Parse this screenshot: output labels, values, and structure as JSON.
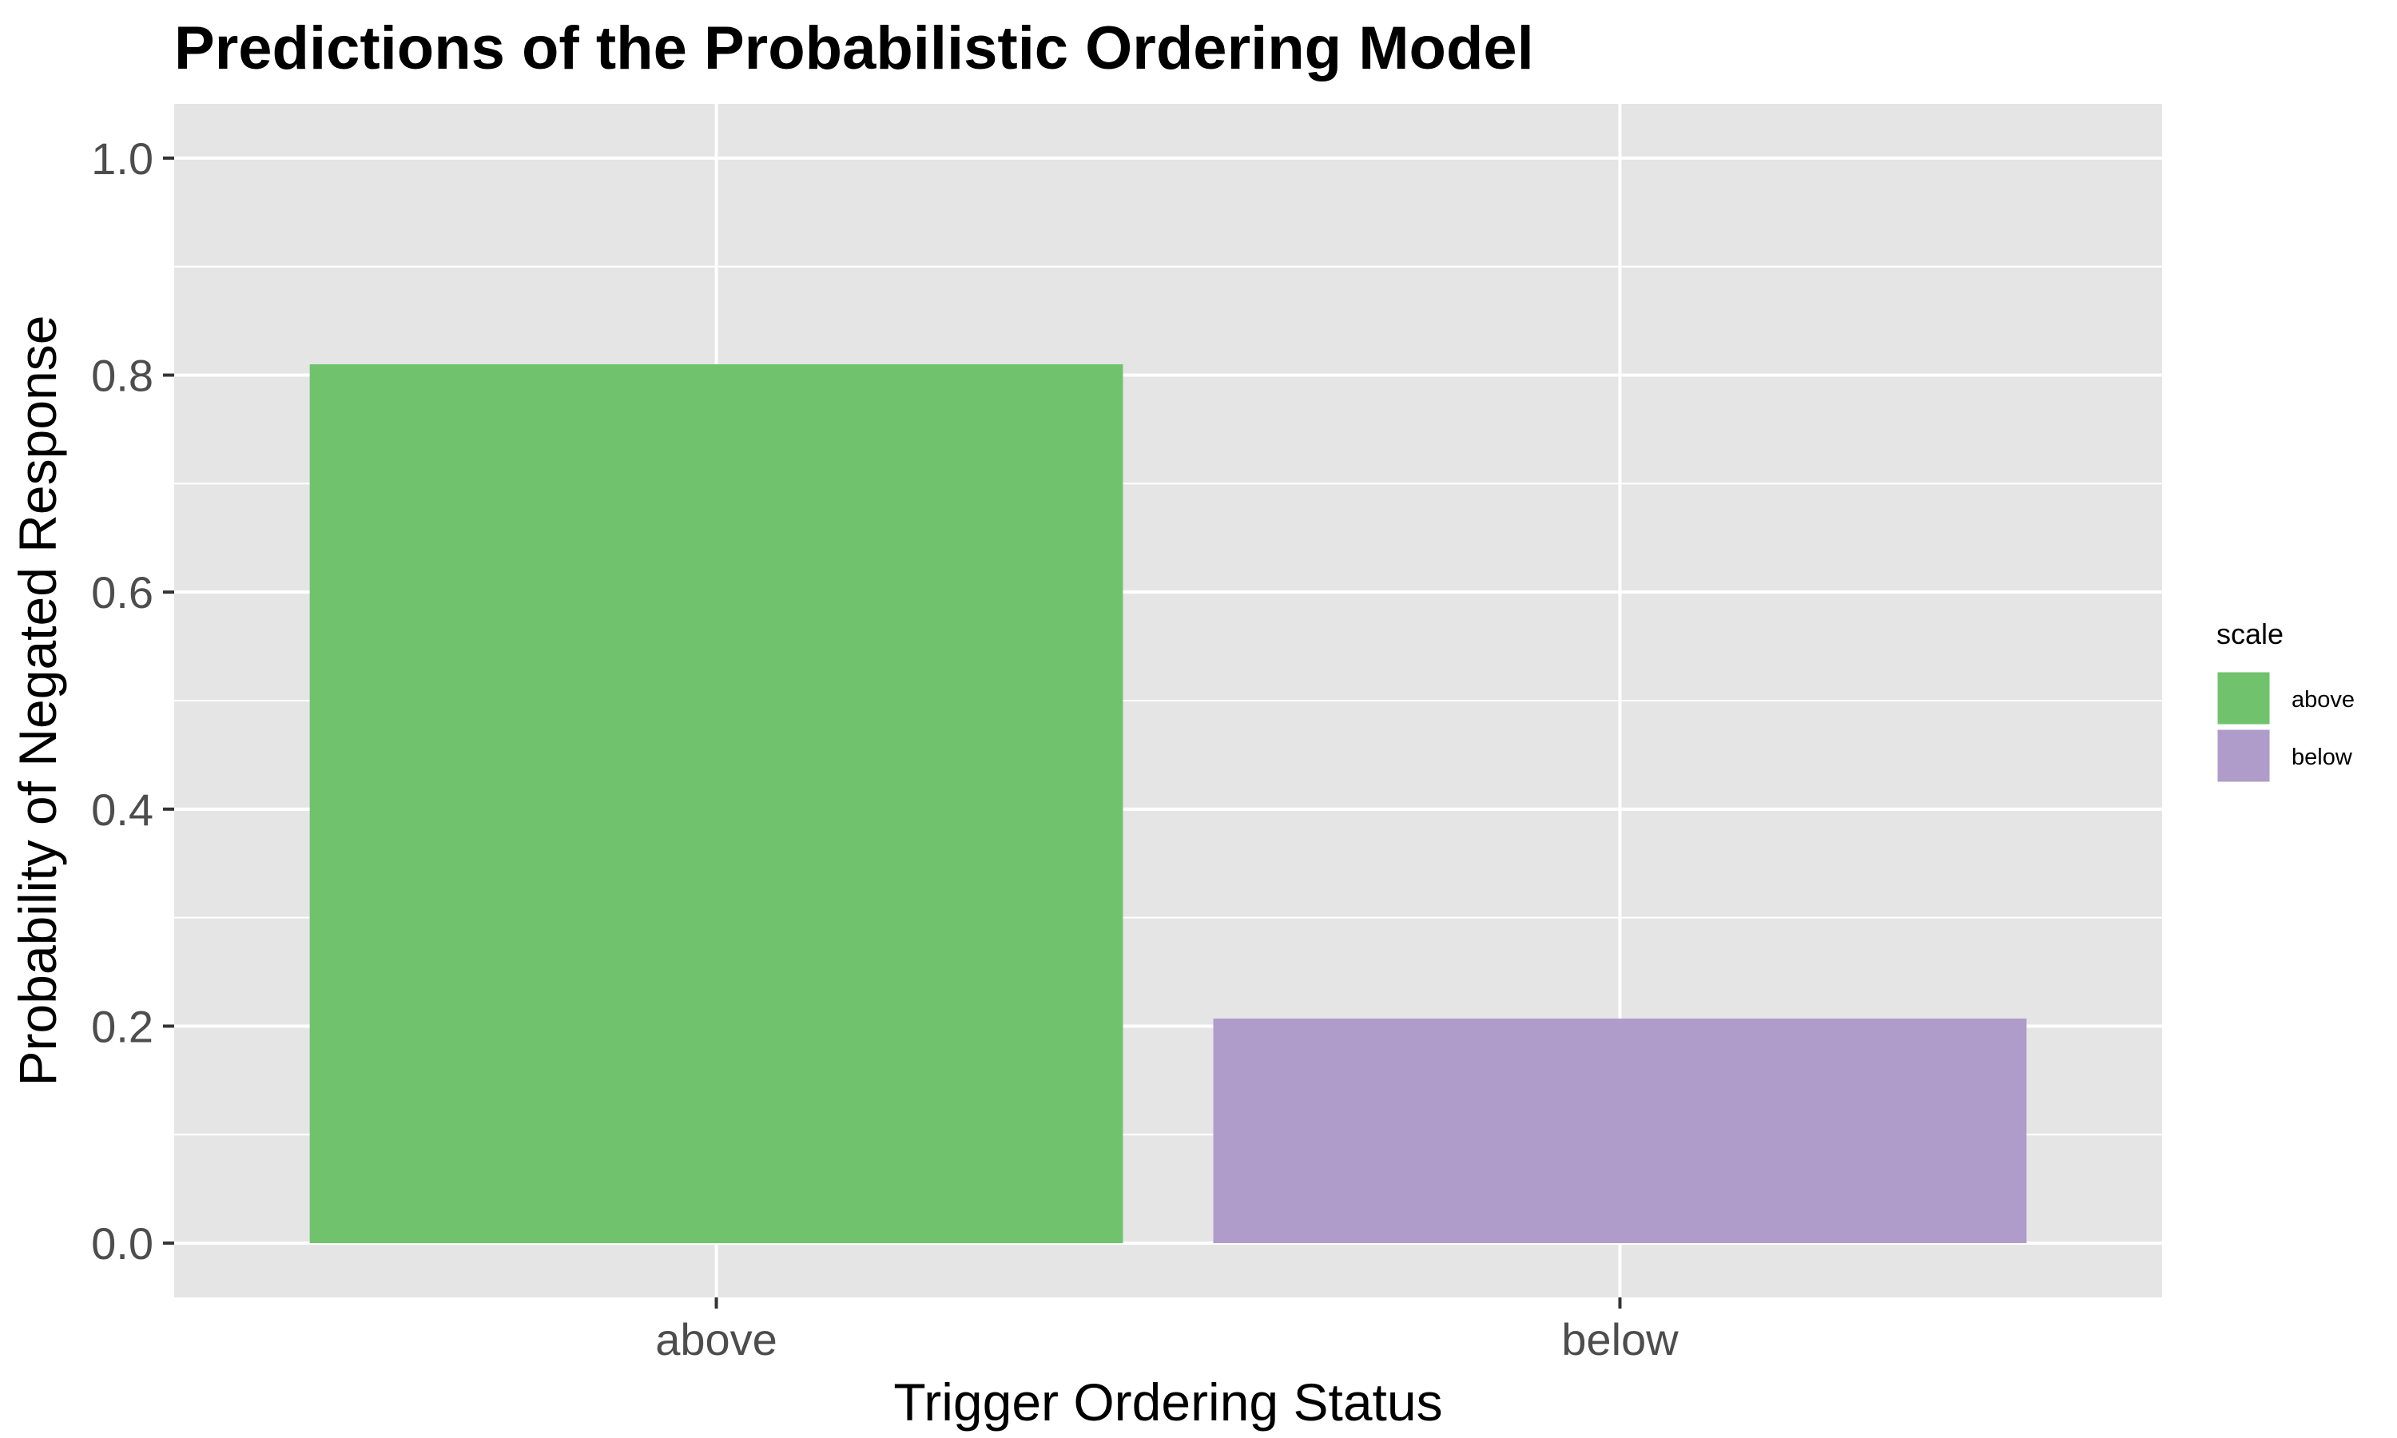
{
  "chart_data": {
    "type": "bar",
    "title": "Predictions of the Probabilistic Ordering Model",
    "xlabel": "Trigger Ordering Status",
    "ylabel": "Probability of Negated Response",
    "categories": [
      "above",
      "below"
    ],
    "values": [
      0.81,
      0.207
    ],
    "colors": [
      "#70C36C",
      "#AF9CCA"
    ],
    "ylim": [
      -0.05,
      1.05
    ],
    "yticks": [
      "0.0",
      "0.2",
      "0.4",
      "0.6",
      "0.8",
      "1.0"
    ],
    "grid": true,
    "legend": {
      "title": "scale",
      "position": "right",
      "entries": [
        "above",
        "below"
      ]
    }
  },
  "colors": {
    "panel_background": "#E5E5E5",
    "grid_line": "#FFFFFF",
    "tick_color": "#333333"
  }
}
